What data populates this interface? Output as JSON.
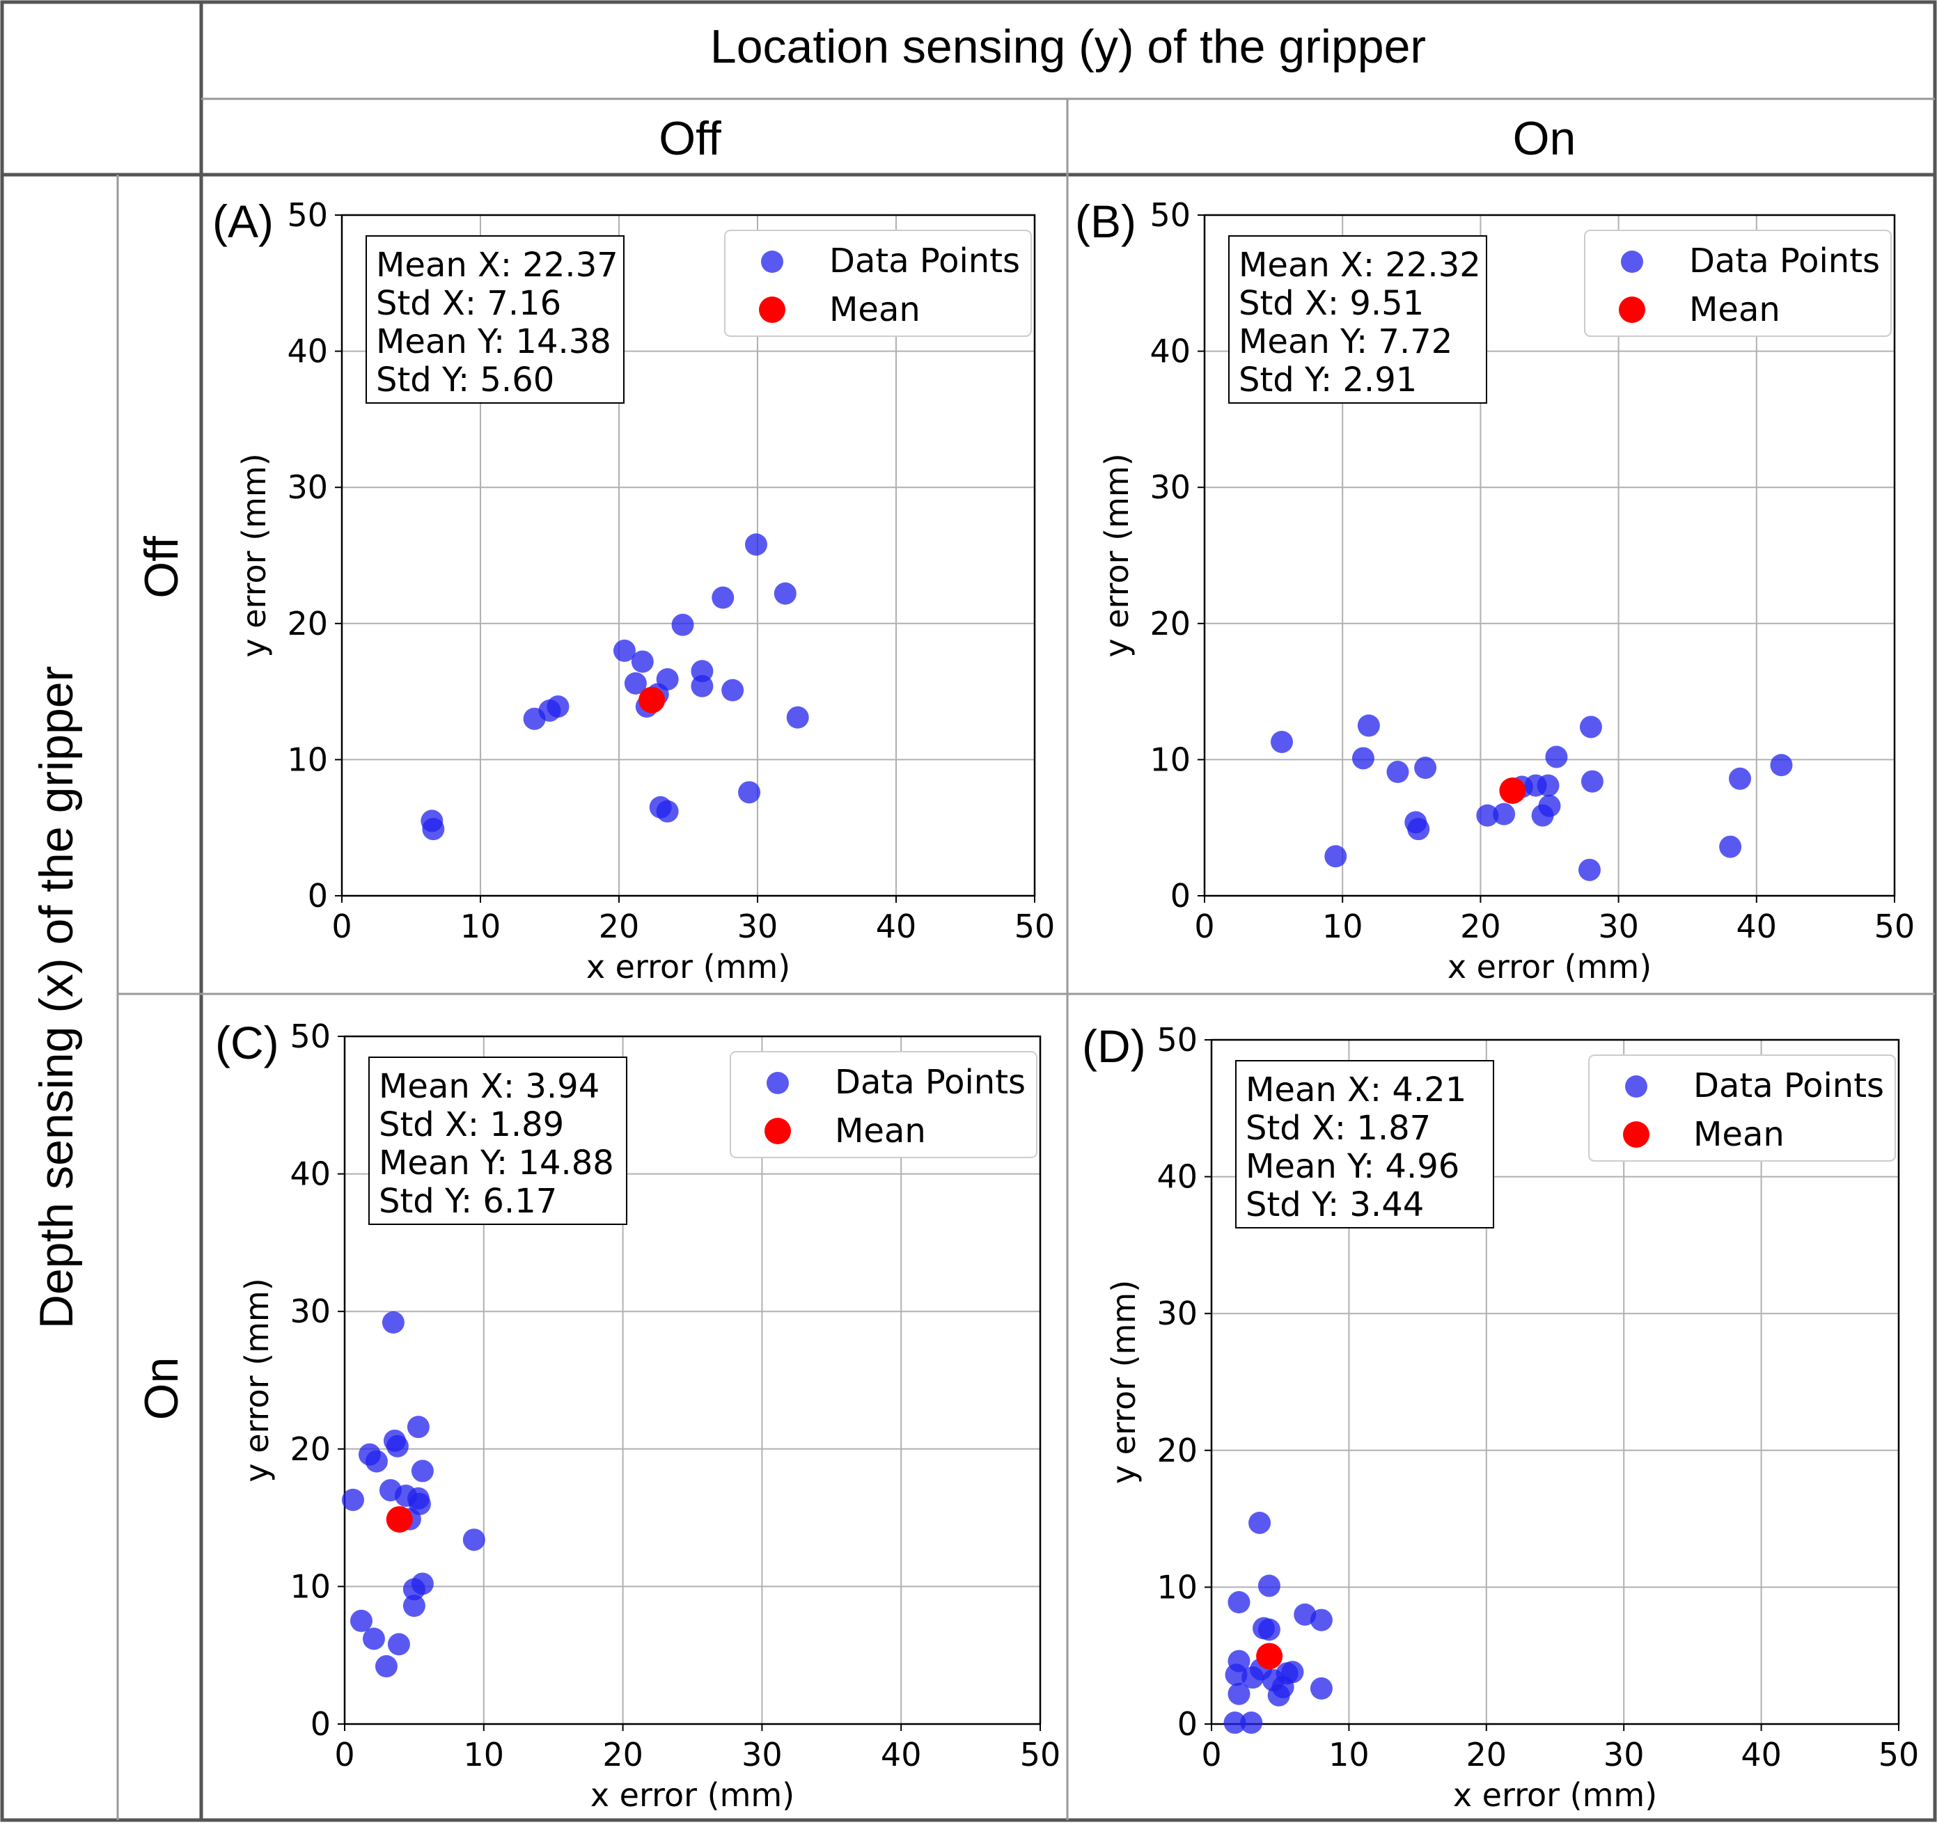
{
  "header": {
    "top_title": "Location sensing (y) of the gripper",
    "col_off": "Off",
    "col_on": "On",
    "row_title": "Depth sensing (x) of the gripper",
    "row_off": "Off",
    "row_on": "On"
  },
  "colors": {
    "points": "#2222ee",
    "mean": "#ff0000",
    "grid": "#b0b0b0",
    "border": "#555555"
  },
  "chart_data": [
    {
      "type": "scatter",
      "panel_label": "(A)",
      "xlabel": "x error (mm)",
      "ylabel": "y error (mm)",
      "xlim": [
        0,
        50
      ],
      "ylim": [
        0,
        50
      ],
      "ticks": [
        "0",
        "10",
        "20",
        "30",
        "40",
        "50"
      ],
      "legend": [
        "Data Points",
        "Mean"
      ],
      "stats": [
        "Mean X: 22.37",
        "Std X: 7.16",
        "Mean Y: 14.38",
        "Std Y: 5.60"
      ],
      "points": [
        [
          6.5,
          5.5
        ],
        [
          6.6,
          4.9
        ],
        [
          13.9,
          13.0
        ],
        [
          15.0,
          13.6
        ],
        [
          15.6,
          13.9
        ],
        [
          20.4,
          18.0
        ],
        [
          21.2,
          15.6
        ],
        [
          21.7,
          17.2
        ],
        [
          22.0,
          13.9
        ],
        [
          22.8,
          14.8
        ],
        [
          23.0,
          6.5
        ],
        [
          23.5,
          6.2
        ],
        [
          23.5,
          15.9
        ],
        [
          24.6,
          19.9
        ],
        [
          26.0,
          16.5
        ],
        [
          26.0,
          15.4
        ],
        [
          27.5,
          21.9
        ],
        [
          28.2,
          15.1
        ],
        [
          29.4,
          7.6
        ],
        [
          29.9,
          25.8
        ],
        [
          32.0,
          22.2
        ],
        [
          32.9,
          13.1
        ]
      ],
      "mean": [
        22.37,
        14.38
      ]
    },
    {
      "type": "scatter",
      "panel_label": "(B)",
      "xlabel": "x error (mm)",
      "ylabel": "y error (mm)",
      "xlim": [
        0,
        50
      ],
      "ylim": [
        0,
        50
      ],
      "ticks": [
        "0",
        "10",
        "20",
        "30",
        "40",
        "50"
      ],
      "legend": [
        "Data Points",
        "Mean"
      ],
      "stats": [
        "Mean X: 22.32",
        "Std X: 9.51",
        "Mean Y: 7.72",
        "Std Y: 2.91"
      ],
      "points": [
        [
          5.6,
          11.3
        ],
        [
          9.5,
          2.9
        ],
        [
          11.5,
          10.1
        ],
        [
          11.9,
          12.5
        ],
        [
          14.0,
          9.1
        ],
        [
          15.3,
          5.4
        ],
        [
          15.5,
          4.9
        ],
        [
          16.0,
          9.4
        ],
        [
          20.5,
          5.9
        ],
        [
          21.7,
          6.0
        ],
        [
          23.0,
          8.0
        ],
        [
          24.0,
          8.1
        ],
        [
          24.5,
          5.9
        ],
        [
          24.9,
          8.1
        ],
        [
          25.0,
          6.6
        ],
        [
          25.5,
          10.2
        ],
        [
          27.9,
          1.9
        ],
        [
          28.0,
          12.4
        ],
        [
          28.1,
          8.4
        ],
        [
          38.1,
          3.6
        ],
        [
          38.8,
          8.6
        ],
        [
          41.8,
          9.6
        ]
      ],
      "mean": [
        22.32,
        7.72
      ]
    },
    {
      "type": "scatter",
      "panel_label": "(C)",
      "xlabel": "x error (mm)",
      "ylabel": "y error (mm)",
      "xlim": [
        0,
        50
      ],
      "ylim": [
        0,
        50
      ],
      "ticks": [
        "0",
        "10",
        "20",
        "30",
        "40",
        "50"
      ],
      "legend": [
        "Data Points",
        "Mean"
      ],
      "stats": [
        "Mean X: 3.94",
        "Std X: 1.89",
        "Mean Y: 14.88",
        "Std Y: 6.17"
      ],
      "points": [
        [
          0.6,
          16.3
        ],
        [
          1.2,
          7.5
        ],
        [
          1.8,
          19.6
        ],
        [
          2.1,
          6.2
        ],
        [
          2.3,
          19.1
        ],
        [
          3.0,
          4.2
        ],
        [
          3.3,
          17.0
        ],
        [
          3.5,
          29.2
        ],
        [
          3.6,
          20.6
        ],
        [
          3.8,
          20.2
        ],
        [
          3.9,
          5.8
        ],
        [
          4.4,
          16.6
        ],
        [
          4.7,
          14.9
        ],
        [
          5.0,
          9.8
        ],
        [
          5.0,
          8.6
        ],
        [
          5.3,
          16.4
        ],
        [
          5.3,
          21.6
        ],
        [
          5.4,
          16.0
        ],
        [
          5.6,
          18.4
        ],
        [
          5.6,
          10.2
        ],
        [
          9.3,
          13.4
        ]
      ],
      "mean": [
        3.94,
        14.88
      ]
    },
    {
      "type": "scatter",
      "panel_label": "(D)",
      "xlabel": "x error (mm)",
      "ylabel": "y error (mm)",
      "xlim": [
        0,
        50
      ],
      "ylim": [
        0,
        50
      ],
      "ticks": [
        "0",
        "10",
        "20",
        "30",
        "40",
        "50"
      ],
      "legend": [
        "Data Points",
        "Mean"
      ],
      "stats": [
        "Mean X: 4.21",
        "Std X: 1.87",
        "Mean Y: 4.96",
        "Std Y: 3.44"
      ],
      "points": [
        [
          1.7,
          0.1
        ],
        [
          1.8,
          3.6
        ],
        [
          2.0,
          2.2
        ],
        [
          2.0,
          4.6
        ],
        [
          2.0,
          8.9
        ],
        [
          2.9,
          0.1
        ],
        [
          3.0,
          3.4
        ],
        [
          3.5,
          14.7
        ],
        [
          3.6,
          4.0
        ],
        [
          3.8,
          7.0
        ],
        [
          4.2,
          10.1
        ],
        [
          4.2,
          6.9
        ],
        [
          4.5,
          3.2
        ],
        [
          4.9,
          2.1
        ],
        [
          5.2,
          2.7
        ],
        [
          5.5,
          3.7
        ],
        [
          5.9,
          3.8
        ],
        [
          6.8,
          8.0
        ],
        [
          8.0,
          7.6
        ],
        [
          8.0,
          2.6
        ]
      ],
      "mean": [
        4.21,
        4.96
      ]
    }
  ]
}
